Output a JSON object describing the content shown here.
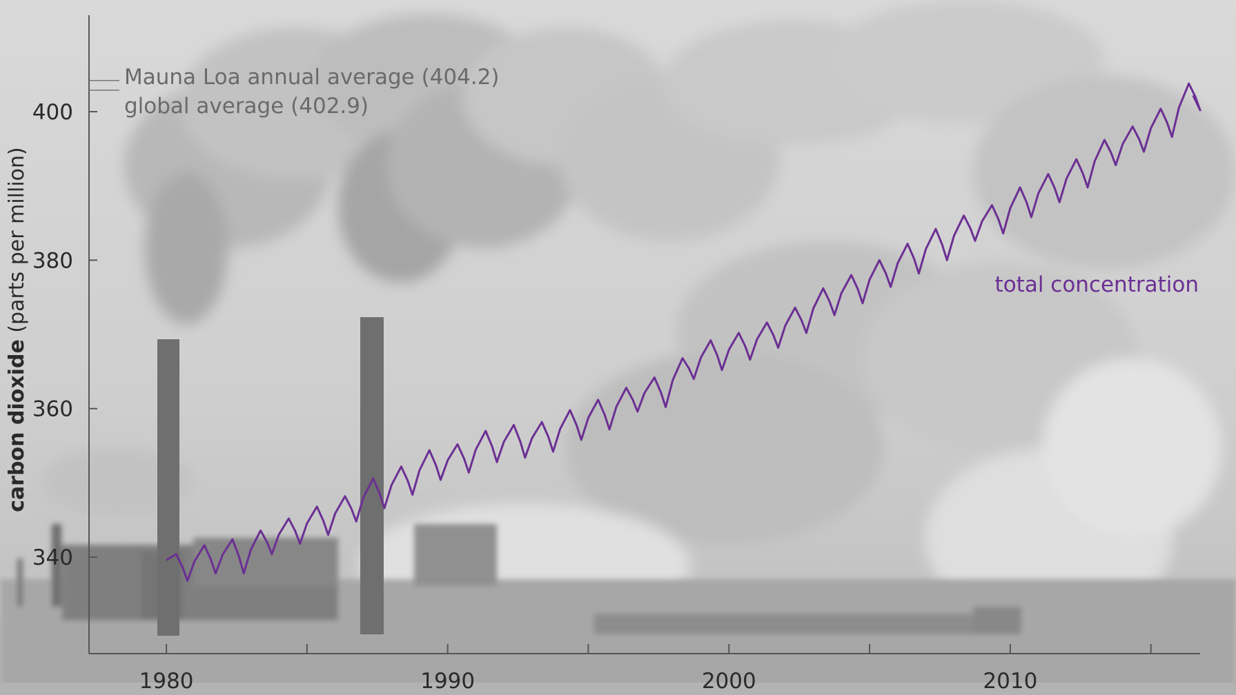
{
  "chart_data": {
    "type": "line",
    "xlabel": "",
    "ylabel": {
      "bold": "carbon dioxide",
      "rest": " (parts per million)"
    },
    "xlim": [
      1977.25,
      2016.75
    ],
    "ylim": [
      327,
      413
    ],
    "x_ticks": [
      1980,
      1985,
      1990,
      1995,
      2000,
      2005,
      2010,
      2015
    ],
    "x_tick_labels": [
      "1980",
      "1990",
      "2000",
      "2010"
    ],
    "x_tick_label_values": [
      1980,
      1990,
      2000,
      2010
    ],
    "y_ticks": [
      340,
      360,
      380,
      400
    ],
    "y_tick_labels": [
      "340",
      "360",
      "380",
      "400"
    ],
    "series": [
      {
        "name": "total concentration",
        "color": "#6b2f93",
        "start_year": 1980,
        "end_year": 2016.5,
        "annual_peaks": [
          340.4,
          341.6,
          342.4,
          343.6,
          345.2,
          346.8,
          348.2,
          350.6,
          352.2,
          354.4,
          355.2,
          357.0,
          357.8,
          358.2,
          359.8,
          361.2,
          362.8,
          364.2,
          366.8,
          369.2,
          370.2,
          371.6,
          373.6,
          376.2,
          378.0,
          380.0,
          382.2,
          384.2,
          386.0,
          387.4,
          389.8,
          391.6,
          393.6,
          396.2,
          398.0,
          400.4,
          403.8
        ],
        "annual_troughs": [
          336.8,
          337.8,
          337.8,
          340.4,
          341.8,
          343.0,
          344.8,
          346.6,
          348.4,
          350.4,
          351.4,
          352.8,
          353.4,
          354.2,
          355.8,
          357.2,
          359.6,
          360.2,
          364.0,
          365.2,
          366.6,
          368.2,
          370.2,
          372.6,
          374.2,
          376.4,
          378.2,
          380.0,
          382.6,
          383.6,
          385.8,
          387.8,
          389.8,
          392.8,
          394.6,
          396.6,
          400.2
        ],
        "final_value": 402.2
      }
    ],
    "reference_lines": [
      {
        "label": "Mauna Loa annual average (404.2)",
        "value": 404.2
      },
      {
        "label": "global average (402.9)",
        "value": 402.9
      }
    ],
    "grid": false,
    "background": "grayscale photograph of a coal power plant with smokestacks and clouds of smoke"
  }
}
